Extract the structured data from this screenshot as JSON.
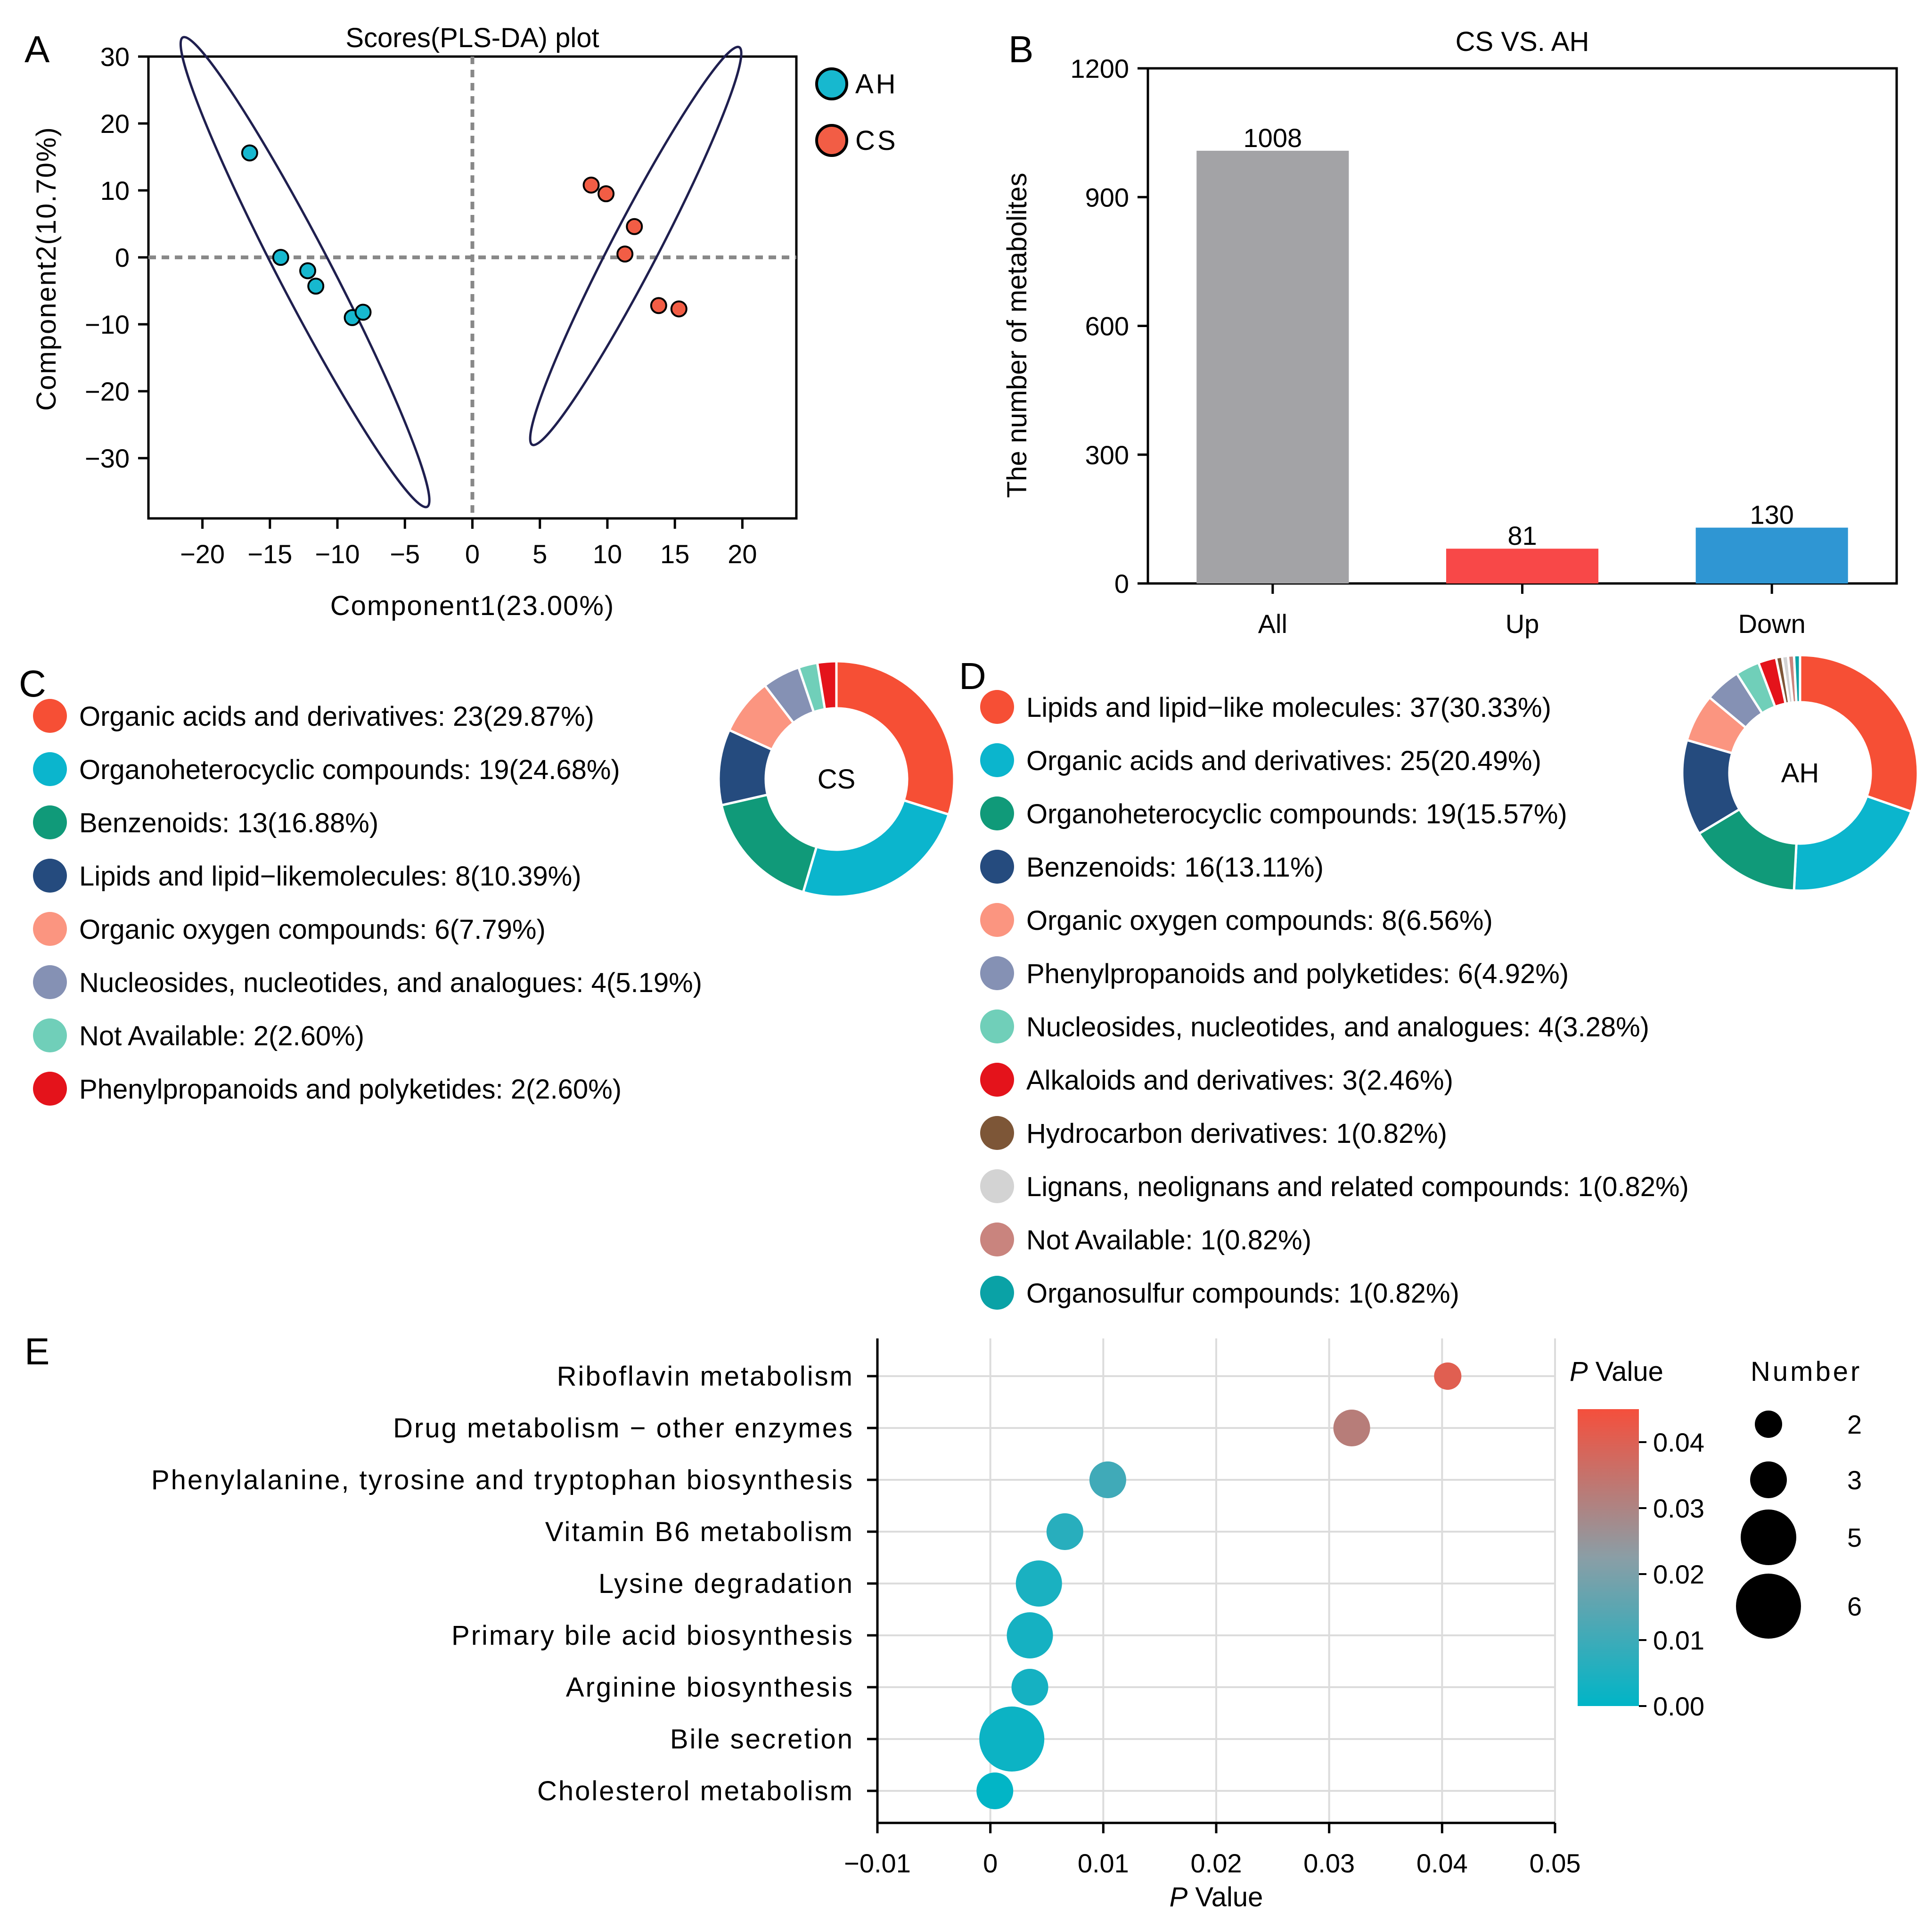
{
  "chart_data": [
    {
      "panel": "A",
      "type": "scatter",
      "title": "Scores(PLS-DA) plot",
      "xlabel": "Component1(23.00%)",
      "ylabel": "Component2(10.70%)",
      "xlim": [
        -24,
        24
      ],
      "ylim": [
        -39,
        30
      ],
      "xticks": [
        -20,
        -15,
        -10,
        -5,
        0,
        5,
        10,
        15,
        20
      ],
      "yticks": [
        30,
        20,
        10,
        0,
        -10,
        -20,
        -30
      ],
      "xtick_labels": [
        "−20",
        "−15",
        "−10",
        "−5",
        "0",
        "5",
        "10",
        "15",
        "20"
      ],
      "ytick_labels": [
        "30",
        "20",
        "10",
        "0",
        "−10",
        "−20",
        "−30"
      ],
      "reference_lines": {
        "x": 0,
        "y": 0
      },
      "series": [
        {
          "name": "AH",
          "color": "#17b8cf",
          "points": [
            [
              -16.5,
              15.6
            ],
            [
              -14.2,
              0.0
            ],
            [
              -12.2,
              -2.0
            ],
            [
              -11.6,
              -4.3
            ],
            [
              -8.9,
              -9.0
            ],
            [
              -8.1,
              -8.2
            ]
          ],
          "ellipse": {
            "center": [
              -12.4,
              -2.2
            ],
            "angle_deg": 62.5,
            "semi_major_data": 19.6,
            "semi_minor_data": 1.95
          }
        },
        {
          "name": "CS",
          "color": "#f25d45",
          "points": [
            [
              8.8,
              10.8
            ],
            [
              9.9,
              9.5
            ],
            [
              12.0,
              4.6
            ],
            [
              11.3,
              0.5
            ],
            [
              13.8,
              -7.2
            ],
            [
              15.3,
              -7.7
            ]
          ],
          "ellipse": {
            "center": [
              12.1,
              1.7
            ],
            "angle_deg": 62.5,
            "semi_major_data": 16.6,
            "semi_minor_data": 1.75
          }
        }
      ],
      "legend": [
        "AH",
        "CS"
      ]
    },
    {
      "panel": "B",
      "type": "bar",
      "title": "CS VS. AH",
      "ylabel": "The number of metabolites",
      "categories": [
        "All",
        "Up",
        "Down"
      ],
      "values": [
        1008,
        81,
        130
      ],
      "value_labels": [
        "1008",
        "81",
        "130"
      ],
      "colors": [
        "#a3a3a6",
        "#f84848",
        "#2f96d3"
      ],
      "ylim": [
        0,
        1200
      ],
      "yticks": [
        0,
        300,
        600,
        900,
        1200
      ]
    },
    {
      "panel": "C",
      "type": "pie",
      "center_label": "CS",
      "slices": [
        {
          "label": "Organic acids and derivatives: 23(29.87%)",
          "value": 29.87,
          "color": "#f64f35"
        },
        {
          "label": "Organoheterocyclic compounds: 19(24.68%)",
          "value": 24.68,
          "color": "#0bb5cd"
        },
        {
          "label": "Benzenoids: 13(16.88%)",
          "value": 16.88,
          "color": "#109a79"
        },
        {
          "label": "Lipids and lipid−likemolecules: 8(10.39%)",
          "value": 10.39,
          "color": "#254b7e"
        },
        {
          "label": "Organic oxygen compounds: 6(7.79%)",
          "value": 7.79,
          "color": "#fb9580"
        },
        {
          "label": "Nucleosides, nucleotides, and analogues: 4(5.19%)",
          "value": 5.19,
          "color": "#8591b4"
        },
        {
          "label": "Not Available: 2(2.60%)",
          "value": 2.6,
          "color": "#70cfb9"
        },
        {
          "label": "Phenylpropanoids and polyketides: 2(2.60%)",
          "value": 2.6,
          "color": "#e4131b"
        }
      ]
    },
    {
      "panel": "D",
      "type": "pie",
      "center_label": "AH",
      "slices": [
        {
          "label": "Lipids and lipid−like molecules: 37(30.33%)",
          "value": 30.33,
          "color": "#f64f35"
        },
        {
          "label": "Organic acids and derivatives: 25(20.49%)",
          "value": 20.49,
          "color": "#0bb5cd"
        },
        {
          "label": "Organoheterocyclic compounds: 19(15.57%)",
          "value": 15.57,
          "color": "#109a79"
        },
        {
          "label": "Benzenoids: 16(13.11%)",
          "value": 13.11,
          "color": "#254b7e"
        },
        {
          "label": "Organic oxygen compounds: 8(6.56%)",
          "value": 6.56,
          "color": "#fb9580"
        },
        {
          "label": "Phenylpropanoids and polyketides: 6(4.92%)",
          "value": 4.92,
          "color": "#8591b4"
        },
        {
          "label": "Nucleosides, nucleotides, and analogues: 4(3.28%)",
          "value": 3.28,
          "color": "#70cfb9"
        },
        {
          "label": "Alkaloids and derivatives: 3(2.46%)",
          "value": 2.46,
          "color": "#e4131b"
        },
        {
          "label": "Hydrocarbon derivatives: 1(0.82%)",
          "value": 0.82,
          "color": "#7d5637"
        },
        {
          "label": "Lignans, neolignans and related compounds: 1(0.82%)",
          "value": 0.82,
          "color": "#d3d3d3"
        },
        {
          "label": "Not Available: 1(0.82%)",
          "value": 0.82,
          "color": "#c9847e"
        },
        {
          "label": "Organosulfur compounds: 1(0.82%)",
          "value": 0.82,
          "color": "#0aa2a6"
        }
      ]
    },
    {
      "panel": "E",
      "type": "scatter",
      "xlabel_italic": "P",
      "xlabel_rest": " Value",
      "xlim": [
        -0.01,
        0.05
      ],
      "xticks": [
        -0.01,
        0,
        0.01,
        0.02,
        0.03,
        0.04,
        0.05
      ],
      "xtick_labels": [
        "−0.01",
        "0",
        "0.01",
        "0.02",
        "0.03",
        "0.04",
        "0.05"
      ],
      "pathways": [
        {
          "name": "Riboflavin metabolism",
          "p": 0.0405,
          "number": 2
        },
        {
          "name": "Drug metabolism − other enzymes",
          "p": 0.032,
          "number": 3
        },
        {
          "name": "Phenylalanine, tyrosine and tryptophan biosynthesis",
          "p": 0.0104,
          "number": 3
        },
        {
          "name": "Vitamin B6 metabolism",
          "p": 0.0066,
          "number": 3
        },
        {
          "name": "Lysine degradation",
          "p": 0.0043,
          "number": 4
        },
        {
          "name": "Primary bile acid biosynthesis",
          "p": 0.0035,
          "number": 4
        },
        {
          "name": "Arginine biosynthesis",
          "p": 0.0035,
          "number": 3
        },
        {
          "name": "Bile secretion",
          "p": 0.0019,
          "number": 6
        },
        {
          "name": "Cholesterol metabolism",
          "p": 0.0004,
          "number": 3
        }
      ],
      "colorbar": {
        "title_italic": "P",
        "title_rest": " Value",
        "range": [
          0,
          0.045
        ],
        "low_color": "#00b5c7",
        "mid_color": "#8a9ea6",
        "high_color": "#f54f3c",
        "ticks": [
          0,
          0.01,
          0.02,
          0.03,
          0.04
        ],
        "tick_labels": [
          "0.00",
          "0.01",
          "0.02",
          "0.03",
          "0.04"
        ]
      },
      "size_legend": {
        "title": "Number",
        "labels": [
          "2",
          "3",
          "5",
          "6"
        ],
        "values": [
          2,
          3,
          5,
          6
        ]
      }
    }
  ],
  "panel_letters": [
    "A",
    "B",
    "C",
    "D",
    "E"
  ]
}
